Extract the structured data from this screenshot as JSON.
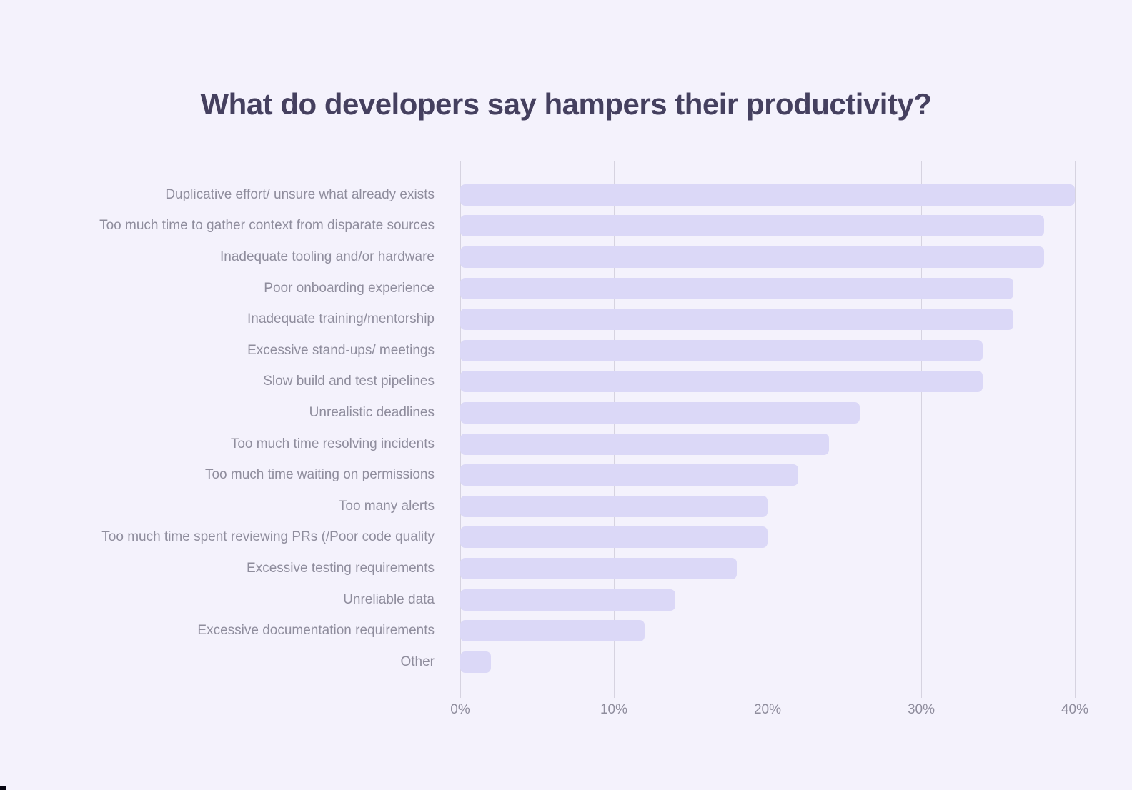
{
  "title": "What do developers say hampers their productivity?",
  "chart_data": {
    "type": "bar",
    "orientation": "horizontal",
    "title": "What do developers say hampers their productivity?",
    "xlabel": "",
    "ylabel": "",
    "xlim": [
      0,
      40
    ],
    "x_ticks": [
      "0%",
      "10%",
      "20%",
      "30%",
      "40%"
    ],
    "grid": "vertical",
    "legend": "none",
    "bar_color": "#dbd8f7",
    "background_color": "#f4f2fc",
    "categories": [
      "Duplicative effort/ unsure what already exists",
      "Too much time to gather context from disparate sources",
      "Inadequate tooling and/or hardware",
      "Poor onboarding experience",
      "Inadequate training/mentorship",
      "Excessive stand-ups/ meetings",
      "Slow build and test pipelines",
      "Unrealistic deadlines",
      "Too much time resolving incidents",
      "Too much time waiting on permissions",
      "Too many alerts",
      "Too much time spent reviewing PRs (/Poor code quality",
      "Excessive testing requirements",
      "Unreliable data",
      "Excessive documentation requirements",
      "Other"
    ],
    "values": [
      40,
      38,
      38,
      36,
      36,
      34,
      34,
      26,
      24,
      22,
      20,
      20,
      18,
      14,
      12,
      2
    ],
    "values_unit": "%"
  }
}
